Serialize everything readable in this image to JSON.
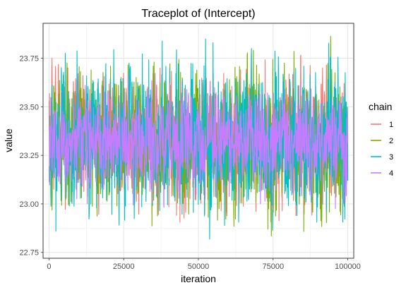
{
  "chart_data": {
    "type": "line",
    "title": "Traceplot of  (Intercept)",
    "xlabel": "iteration",
    "ylabel": "value",
    "xlim": [
      -2000,
      102000
    ],
    "ylim": [
      22.72,
      23.93
    ],
    "x_ticks": [
      0,
      25000,
      50000,
      75000,
      100000
    ],
    "x_tick_labels": [
      "0",
      "25000",
      "50000",
      "75000",
      "100000"
    ],
    "y_ticks": [
      22.75,
      23.0,
      23.25,
      23.5,
      23.75
    ],
    "y_tick_labels": [
      "22.75",
      "23.00",
      "23.25",
      "23.50",
      "23.75"
    ],
    "grid": true,
    "legend_position": "right",
    "legend_title": "chain",
    "approx_mean": 23.33,
    "series": [
      {
        "name": "1",
        "color": "#F8766D",
        "x_range": [
          0,
          100000
        ],
        "min": 22.84,
        "max": 23.77
      },
      {
        "name": "2",
        "color": "#7CAE00",
        "x_range": [
          0,
          100000
        ],
        "min": 22.8,
        "max": 23.89
      },
      {
        "name": "3",
        "color": "#00BFC4",
        "x_range": [
          0,
          100000
        ],
        "min": 22.77,
        "max": 23.85
      },
      {
        "name": "4",
        "color": "#C77CFF",
        "x_range": [
          0,
          100000
        ],
        "min": 22.96,
        "max": 23.72
      }
    ]
  }
}
